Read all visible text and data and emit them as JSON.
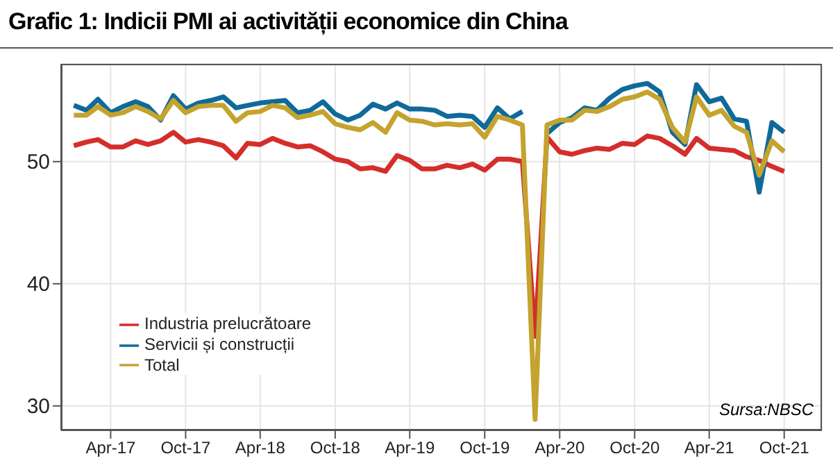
{
  "chart_data": {
    "type": "line",
    "title": "Grafic 1: Indicii PMI ai activității economice din China",
    "x": [
      "2017-01",
      "2017-02",
      "2017-03",
      "2017-04",
      "2017-05",
      "2017-06",
      "2017-07",
      "2017-08",
      "2017-09",
      "2017-10",
      "2017-11",
      "2017-12",
      "2018-01",
      "2018-02",
      "2018-03",
      "2018-04",
      "2018-05",
      "2018-06",
      "2018-07",
      "2018-08",
      "2018-09",
      "2018-10",
      "2018-11",
      "2018-12",
      "2019-01",
      "2019-02",
      "2019-03",
      "2019-04",
      "2019-05",
      "2019-06",
      "2019-07",
      "2019-08",
      "2019-09",
      "2019-10",
      "2019-11",
      "2019-12",
      "2020-01",
      "2020-02",
      "2020-03",
      "2020-04",
      "2020-05",
      "2020-06",
      "2020-07",
      "2020-08",
      "2020-09",
      "2020-10",
      "2020-11",
      "2020-12",
      "2021-01",
      "2021-02",
      "2021-03",
      "2021-04",
      "2021-05",
      "2021-06",
      "2021-07",
      "2021-08",
      "2021-09",
      "2021-10"
    ],
    "series": [
      {
        "name": "Industria prelucrătoare",
        "color": "#d42e2b",
        "values": [
          51.3,
          51.6,
          51.8,
          51.2,
          51.2,
          51.7,
          51.4,
          51.7,
          52.4,
          51.6,
          51.8,
          51.6,
          51.3,
          50.3,
          51.5,
          51.4,
          51.9,
          51.5,
          51.2,
          51.3,
          50.8,
          50.2,
          50.0,
          49.4,
          49.5,
          49.2,
          50.5,
          50.1,
          49.4,
          49.4,
          49.7,
          49.5,
          49.8,
          49.3,
          50.2,
          50.2,
          50.0,
          35.7,
          52.0,
          50.8,
          50.6,
          50.9,
          51.1,
          51.0,
          51.5,
          51.4,
          52.1,
          51.9,
          51.3,
          50.6,
          51.9,
          51.1,
          51.0,
          50.9,
          50.4,
          50.1,
          49.6,
          49.2
        ]
      },
      {
        "name": "Servicii și construcții",
        "color": "#0f6a9a",
        "values": [
          54.6,
          54.2,
          55.1,
          54.0,
          54.5,
          54.9,
          54.5,
          53.4,
          55.4,
          54.3,
          54.8,
          55.0,
          55.3,
          54.4,
          54.6,
          54.8,
          54.9,
          55.0,
          54.0,
          54.2,
          54.9,
          53.9,
          53.4,
          53.8,
          54.7,
          54.3,
          54.8,
          54.3,
          54.3,
          54.2,
          53.7,
          53.8,
          53.7,
          52.8,
          54.4,
          53.5,
          54.1,
          null,
          52.3,
          53.2,
          53.6,
          54.4,
          54.2,
          55.2,
          55.9,
          56.2,
          56.4,
          55.7,
          52.4,
          51.4,
          56.3,
          54.9,
          55.2,
          53.5,
          53.3,
          47.5,
          53.2,
          52.4
        ]
      },
      {
        "name": "Total",
        "color": "#c4a32e",
        "values": [
          53.8,
          53.8,
          54.5,
          53.8,
          54.0,
          54.5,
          54.1,
          53.5,
          55.0,
          54.0,
          54.5,
          54.6,
          54.6,
          53.3,
          54.0,
          54.1,
          54.6,
          54.4,
          53.6,
          53.8,
          54.1,
          53.1,
          52.8,
          52.6,
          53.2,
          52.4,
          54.0,
          53.4,
          53.3,
          53.0,
          53.1,
          53.0,
          53.1,
          52.0,
          53.7,
          53.4,
          53.0,
          28.9,
          53.0,
          53.4,
          53.4,
          54.2,
          54.1,
          54.5,
          55.1,
          55.3,
          55.7,
          55.1,
          52.8,
          51.6,
          55.3,
          53.8,
          54.2,
          52.9,
          52.4,
          48.9,
          51.7,
          50.8
        ]
      }
    ],
    "xlim": [
      "2016-12",
      "2022-01"
    ],
    "xticks": [
      {
        "value": "2017-04",
        "label": "Apr-17"
      },
      {
        "value": "2017-10",
        "label": "Oct-17"
      },
      {
        "value": "2018-04",
        "label": "Apr-18"
      },
      {
        "value": "2018-10",
        "label": "Oct-18"
      },
      {
        "value": "2019-04",
        "label": "Apr-19"
      },
      {
        "value": "2019-10",
        "label": "Oct-19"
      },
      {
        "value": "2020-04",
        "label": "Apr-20"
      },
      {
        "value": "2020-10",
        "label": "Oct-20"
      },
      {
        "value": "2021-04",
        "label": "Apr-21"
      },
      {
        "value": "2021-10",
        "label": "Oct-21"
      }
    ],
    "ylim": [
      28,
      58
    ],
    "yticks": [
      30,
      40,
      50
    ],
    "grid": true,
    "legend": "left",
    "marker": "none",
    "line_style": "solid",
    "annotations": [
      "Sursa:NBSC"
    ]
  }
}
